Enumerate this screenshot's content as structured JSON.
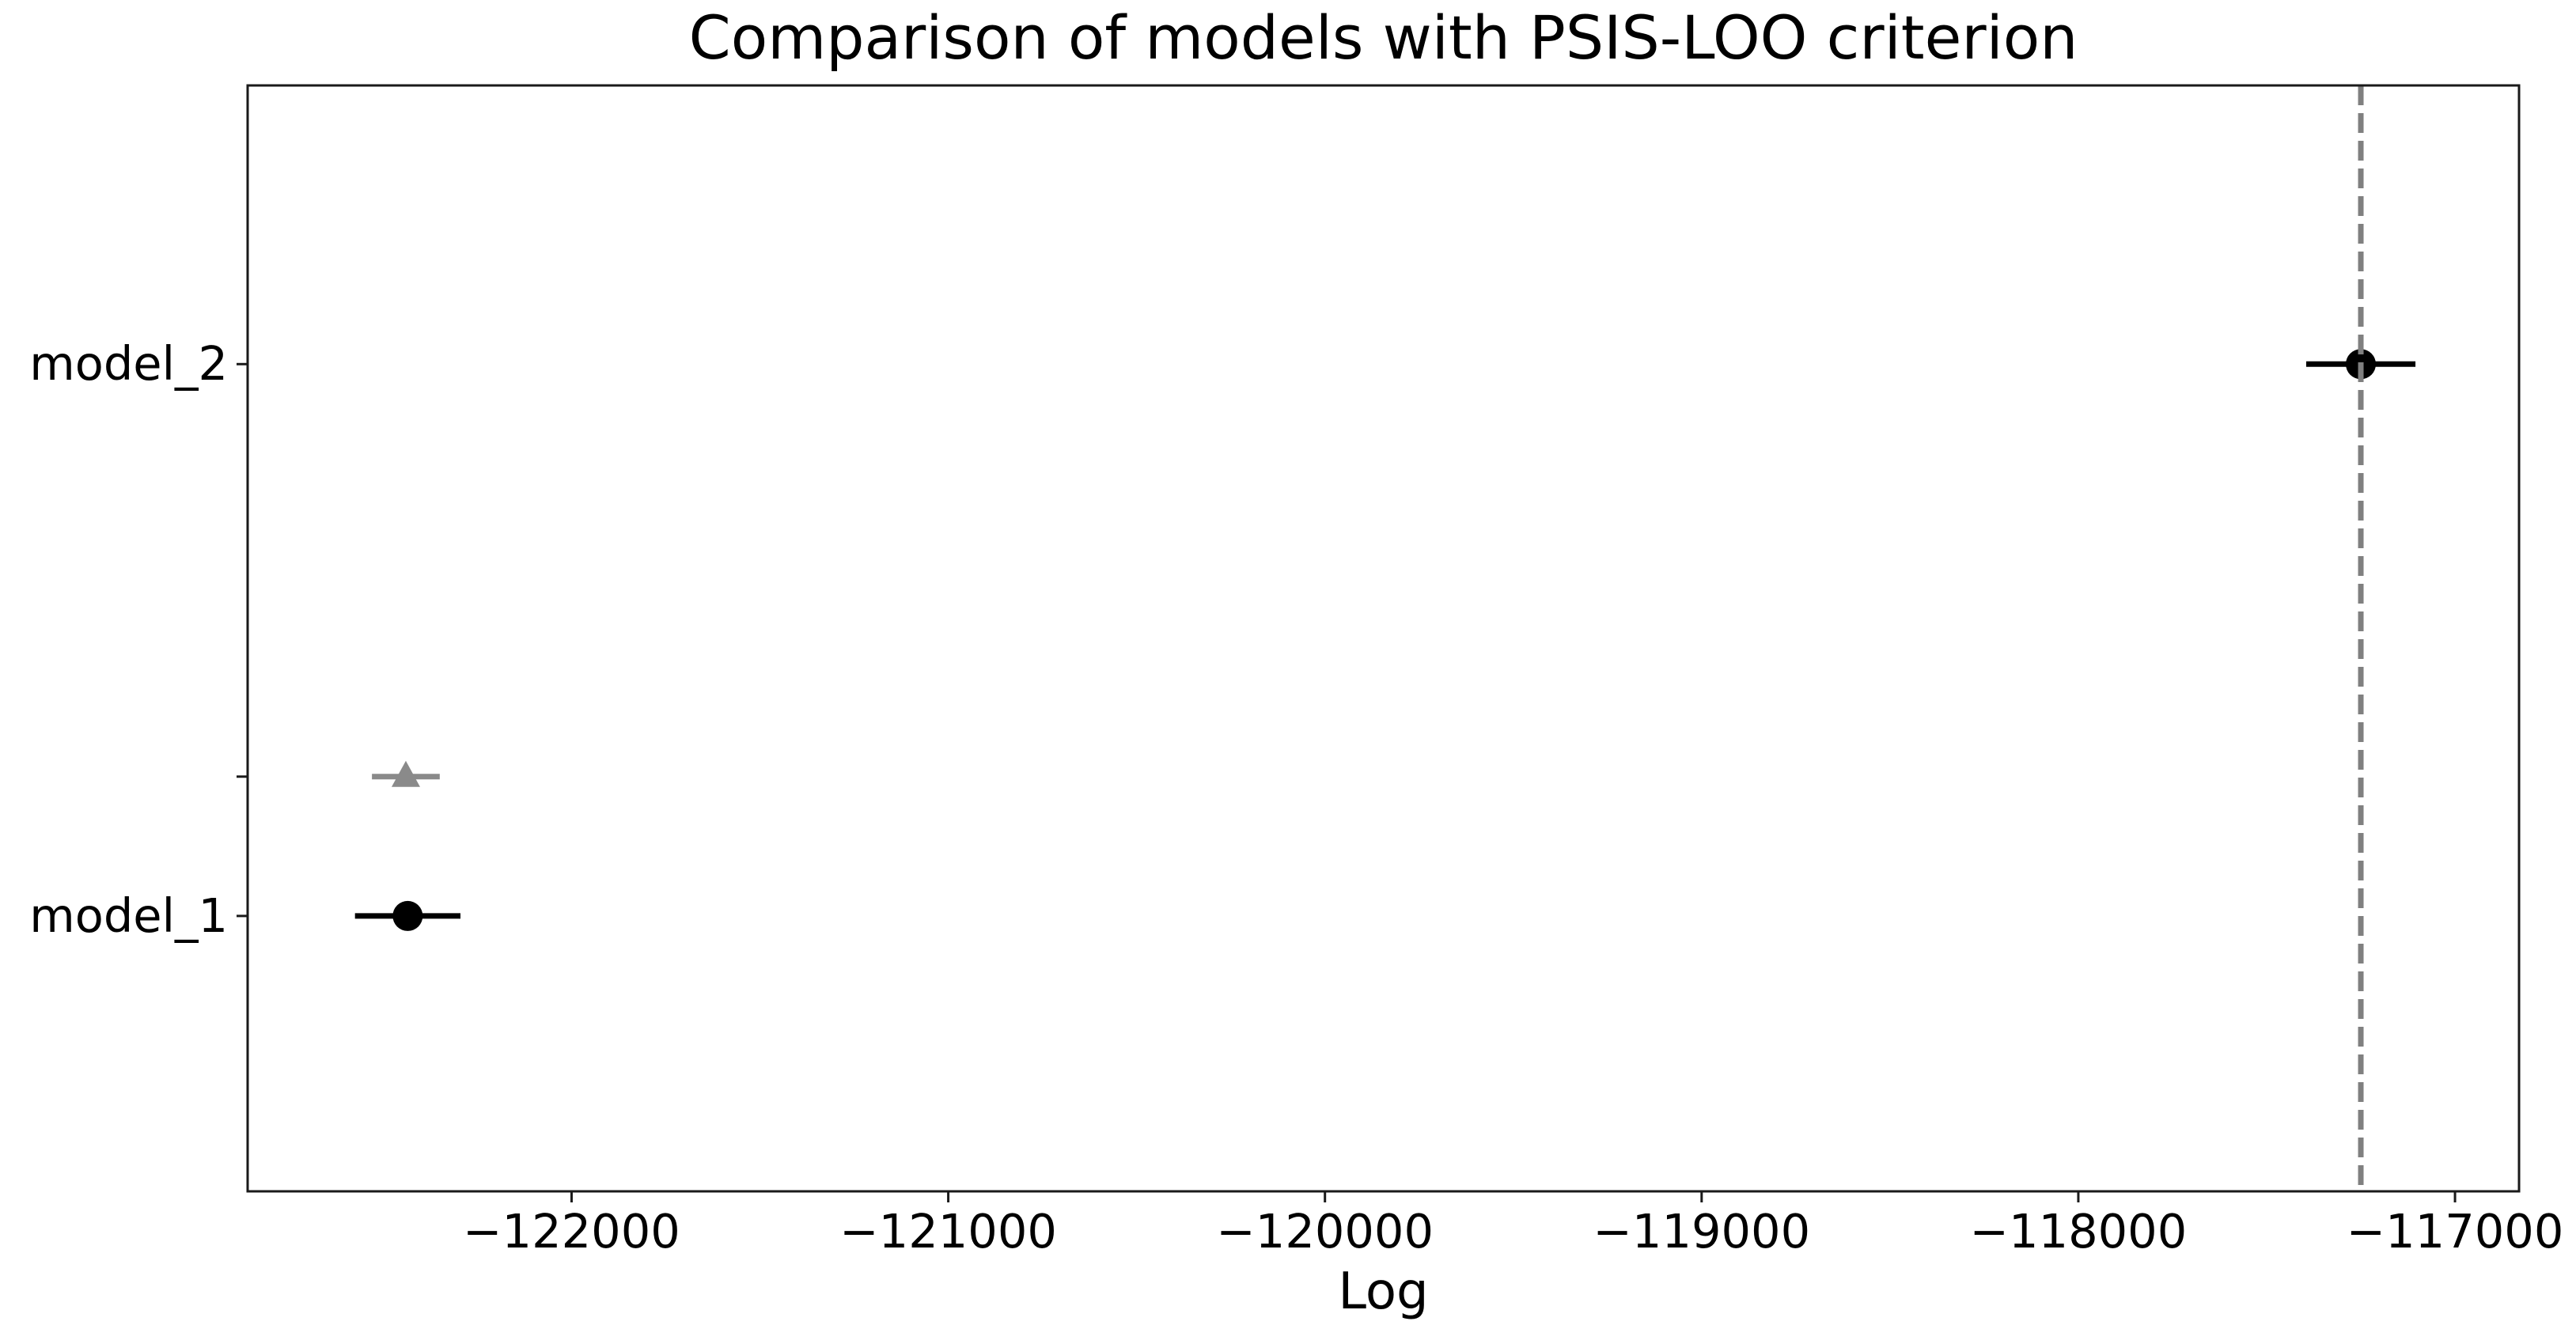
{
  "chart_data": {
    "type": "scatter",
    "title": "Comparison of models with PSIS-LOO criterion",
    "xlabel": "Log",
    "ylabel": "",
    "grid": false,
    "legend": false,
    "xlim": [
      -122860,
      -116830
    ],
    "xticks": [
      -122000,
      -121000,
      -120000,
      -119000,
      -118000,
      -117000
    ],
    "xtick_labels": [
      "−122000",
      "−121000",
      "−120000",
      "−119000",
      "−118000",
      "−117000"
    ],
    "models": [
      {
        "name": "model_2",
        "elpd_loo": -117250,
        "se": 145,
        "y_frac": 0.252
      },
      {
        "name": "model_1",
        "elpd_loo": -122435,
        "se": 140,
        "y_frac": 0.751
      }
    ],
    "elpd_diff_markers": [
      {
        "model": "model_1",
        "x": -122440,
        "dse": 90,
        "y_frac": 0.625
      }
    ],
    "best_model_line_x": -117250,
    "colors": {
      "point": "#000000",
      "se_bar": "#000000",
      "diff_marker": "#8a8a8a",
      "dashed_line": "#808080",
      "spine": "#1a1a1a",
      "text": "#000000"
    }
  }
}
